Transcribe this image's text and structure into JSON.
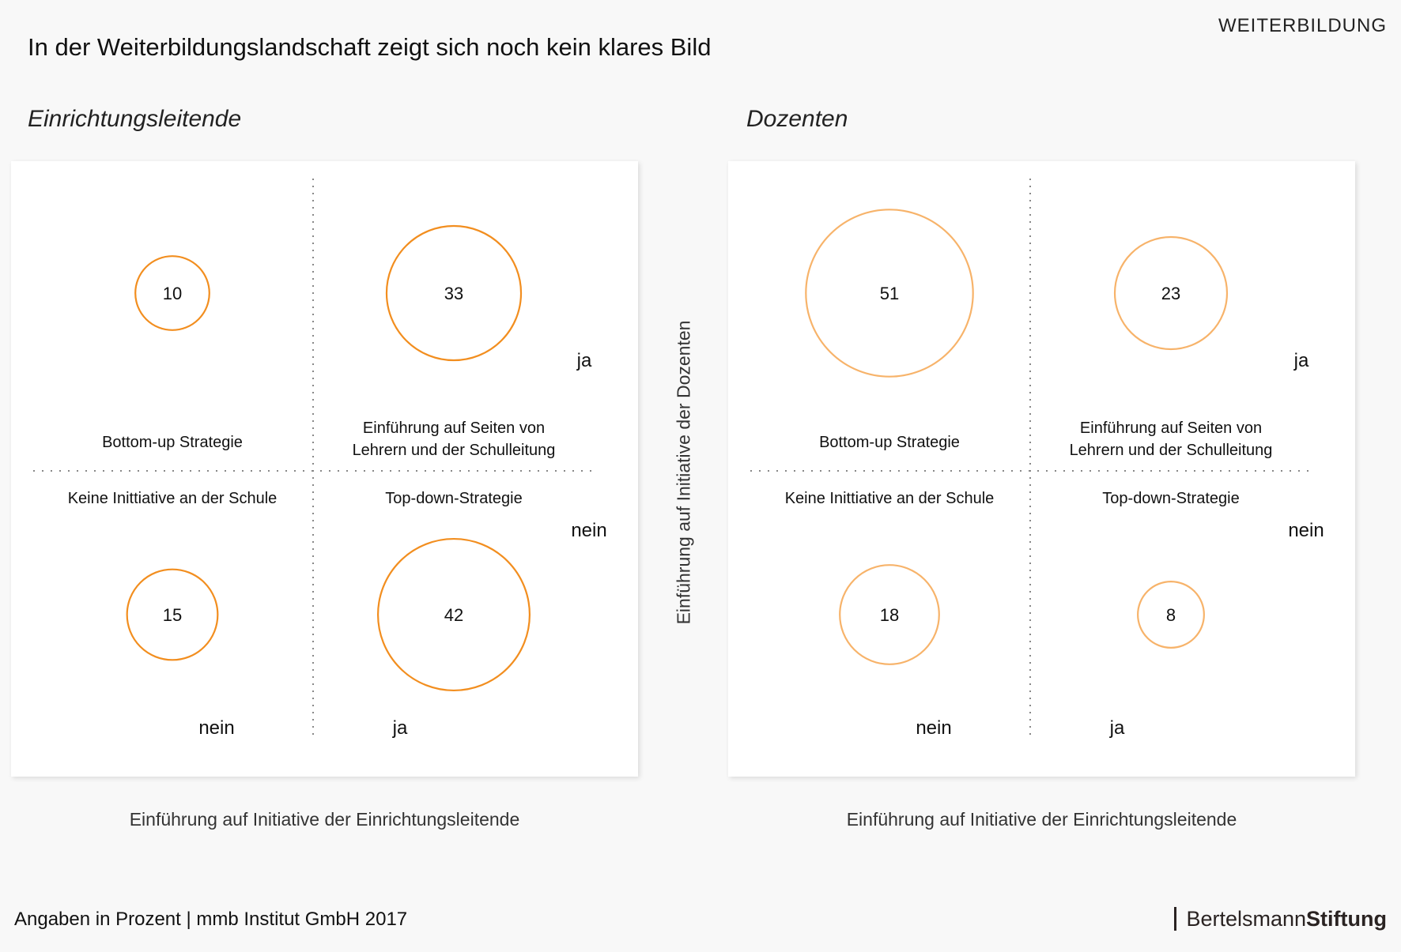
{
  "header": {
    "title": "In der Weiterbildungslandschaft zeigt sich noch kein klares Bild",
    "section_tag": "WEITERBILDUNG"
  },
  "footer": {
    "source": "Angaben in Prozent  | mmb Institut GmbH 2017",
    "brand_regular": "Bertelsmann",
    "brand_bold": "Stiftung"
  },
  "colors": {
    "panel1_circle": "#f28e1f",
    "panel2_circle": "#f7b36a"
  },
  "chart_data": [
    {
      "type": "bubble-quadrant",
      "title": "Einrichtungsleitende",
      "xlabel": "Einführung auf Initiative der Einrichtungsleitende",
      "ylabel": "Einführung auf Initiative der Dozenten",
      "x_categories": [
        "nein",
        "ja"
      ],
      "y_categories": [
        "ja",
        "nein"
      ],
      "unit": "Prozent",
      "quadrants": [
        {
          "label": "Bottom-up Strategie",
          "x": "nein",
          "y": "ja",
          "value": 10
        },
        {
          "label": "Einführung auf Seiten von Lehrern und der Schulleitung",
          "x": "ja",
          "y": "ja",
          "value": 33
        },
        {
          "label": "Keine Inittiative an der Schule",
          "x": "nein",
          "y": "nein",
          "value": 15
        },
        {
          "label": "Top-down-Strategie",
          "x": "ja",
          "y": "nein",
          "value": 42
        }
      ]
    },
    {
      "type": "bubble-quadrant",
      "title": "Dozenten",
      "xlabel": "Einführung auf Initiative der Einrichtungsleitende",
      "ylabel": "Einführung auf Initiative der Dozenten",
      "x_categories": [
        "nein",
        "ja"
      ],
      "y_categories": [
        "ja",
        "nein"
      ],
      "unit": "Prozent",
      "quadrants": [
        {
          "label": "Bottom-up Strategie",
          "x": "nein",
          "y": "ja",
          "value": 51
        },
        {
          "label": "Einführung auf Seiten von Lehrern und der Schulleitung",
          "x": "ja",
          "y": "ja",
          "value": 23
        },
        {
          "label": "Keine Inittiative an der Schule",
          "x": "nein",
          "y": "nein",
          "value": 18
        },
        {
          "label": "Top-down-Strategie",
          "x": "ja",
          "y": "nein",
          "value": 8
        }
      ]
    }
  ]
}
